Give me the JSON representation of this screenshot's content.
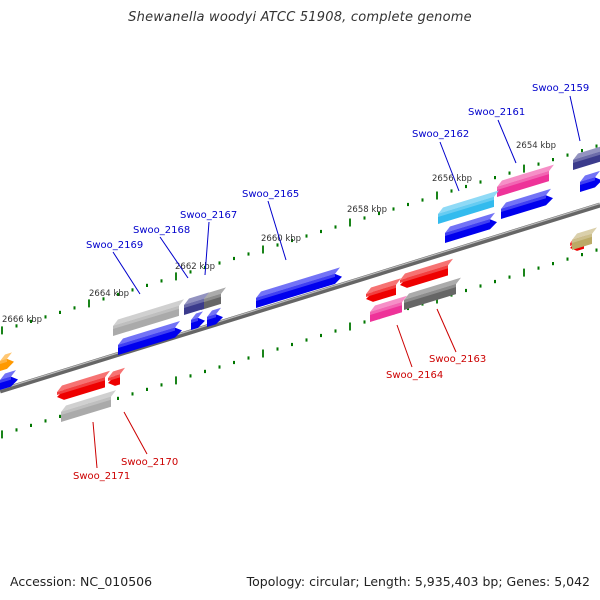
{
  "title": "Shewanella woodyi ATCC 51908, complete genome",
  "footer": {
    "accession": "Accession: NC_010506",
    "topology": "Topology: circular; Length: 5,935,403 bp; Genes: 5,042"
  },
  "colors": {
    "backbone": "#888888",
    "tick": "#007700",
    "forward_label": "#0000cc",
    "reverse_label": "#cc0000",
    "blue": "#0000ee",
    "red": "#ee0000",
    "gray": "#aaaaaa",
    "dark_gray": "#666666",
    "navy": "#3b3b8c",
    "cyan": "#33bbee",
    "magenta": "#ee3399",
    "orange": "#ff9900",
    "olive": "#bbaa66"
  },
  "scale_labels": [
    "2654 kbp",
    "2656 kbp",
    "2658 kbp",
    "2660 kbp",
    "2662 kbp",
    "2664 kbp",
    "2666 kbp"
  ],
  "forward_gene_labels": [
    "Swoo_2159",
    "Swoo_2161",
    "Swoo_2162",
    "Swoo_2165",
    "Swoo_2167",
    "Swoo_2168",
    "Swoo_2169"
  ],
  "reverse_gene_labels": [
    "Swoo_2163",
    "Swoo_2164",
    "Swoo_2170",
    "Swoo_2171"
  ]
}
